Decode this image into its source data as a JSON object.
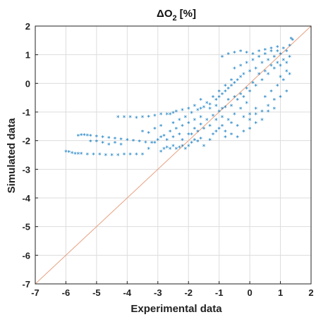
{
  "chart_data": {
    "type": "scatter",
    "title_symbol": "Δ",
    "title_main": "O",
    "title_sub": "2",
    "title_suffix": "[%]",
    "xlabel": "Experimental data",
    "ylabel": "Simulated data",
    "xlim": [
      -7,
      2
    ],
    "ylim": [
      -7,
      2
    ],
    "xticks": [
      "-7",
      "-6",
      "-5",
      "-4",
      "-3",
      "-2",
      "-1",
      "0",
      "1",
      "2"
    ],
    "yticks": [
      "2",
      "1",
      "0",
      "-1",
      "-2",
      "-3",
      "-4",
      "-5",
      "-6",
      "-7"
    ],
    "grid": true,
    "marker": "*",
    "colors": {
      "points": "#0072BD",
      "reference_line": "#E8A080",
      "grid": "#DDDDDD",
      "axes": "#222222"
    },
    "reference_line": {
      "from": [
        -7,
        -7
      ],
      "to": [
        2,
        2
      ]
    },
    "series": [
      {
        "points": [
          [
            -6.0,
            -2.4
          ],
          [
            -5.9,
            -2.42
          ],
          [
            -5.8,
            -2.45
          ],
          [
            -5.7,
            -2.47
          ],
          [
            -5.6,
            -2.48
          ],
          [
            -5.5,
            -2.48
          ],
          [
            -5.3,
            -2.5
          ],
          [
            -5.1,
            -2.5
          ],
          [
            -4.9,
            -2.5
          ],
          [
            -4.7,
            -2.52
          ],
          [
            -4.5,
            -2.52
          ],
          [
            -4.3,
            -2.52
          ],
          [
            -4.1,
            -2.5
          ],
          [
            -3.9,
            -2.5
          ],
          [
            -3.7,
            -2.5
          ],
          [
            -3.5,
            -2.5
          ],
          [
            -5.6,
            -1.85
          ],
          [
            -5.5,
            -1.82
          ],
          [
            -5.4,
            -1.82
          ],
          [
            -5.3,
            -1.83
          ],
          [
            -5.2,
            -1.85
          ],
          [
            -5.0,
            -1.87
          ],
          [
            -4.8,
            -1.9
          ],
          [
            -4.6,
            -1.92
          ],
          [
            -4.4,
            -1.95
          ],
          [
            -4.2,
            -1.97
          ],
          [
            -4.0,
            -2.0
          ],
          [
            -3.8,
            -2.02
          ],
          [
            -3.6,
            -2.05
          ],
          [
            -3.4,
            -2.08
          ],
          [
            -3.2,
            -2.1
          ],
          [
            -4.3,
            -1.2
          ],
          [
            -4.1,
            -1.2
          ],
          [
            -3.9,
            -1.2
          ],
          [
            -3.7,
            -1.22
          ],
          [
            -3.5,
            -1.2
          ],
          [
            -3.3,
            -1.18
          ],
          [
            -3.1,
            -1.15
          ],
          [
            -2.9,
            -1.1
          ],
          [
            -2.7,
            -1.1
          ],
          [
            -2.5,
            -1.05
          ],
          [
            -5.2,
            -2.05
          ],
          [
            -5.0,
            -2.05
          ],
          [
            -4.8,
            -2.1
          ],
          [
            -4.6,
            -2.15
          ],
          [
            -4.4,
            -2.1
          ],
          [
            -4.2,
            -2.15
          ],
          [
            -3.5,
            -1.7
          ],
          [
            -3.3,
            -1.75
          ],
          [
            -3.1,
            -1.6
          ],
          [
            -2.9,
            -1.5
          ],
          [
            -2.8,
            -2.3
          ],
          [
            -2.7,
            -2.25
          ],
          [
            -2.6,
            -2.3
          ],
          [
            -2.5,
            -2.2
          ],
          [
            -2.4,
            -2.3
          ],
          [
            -2.3,
            -2.25
          ],
          [
            -2.2,
            -2.2
          ],
          [
            -2.1,
            -2.3
          ],
          [
            -2.0,
            -2.2
          ],
          [
            -1.9,
            -2.1
          ],
          [
            -1.8,
            -2.0
          ],
          [
            -1.7,
            -2.05
          ],
          [
            -1.6,
            -1.95
          ],
          [
            -3.0,
            -2.0
          ],
          [
            -2.9,
            -1.9
          ],
          [
            -2.8,
            -1.85
          ],
          [
            -2.6,
            -1.7
          ],
          [
            -2.4,
            -1.6
          ],
          [
            -2.2,
            -1.5
          ],
          [
            -2.0,
            -1.4
          ],
          [
            -1.8,
            -1.3
          ],
          [
            -1.6,
            -1.2
          ],
          [
            -2.5,
            -1.4
          ],
          [
            -2.3,
            -1.3
          ],
          [
            -2.1,
            -1.2
          ],
          [
            -1.9,
            -1.05
          ],
          [
            -1.7,
            -0.95
          ],
          [
            -1.5,
            -0.85
          ],
          [
            -1.3,
            -0.75
          ],
          [
            -1.1,
            -0.6
          ],
          [
            -2.2,
            -2.0
          ],
          [
            -2.0,
            -1.8
          ],
          [
            -1.8,
            -1.6
          ],
          [
            -1.6,
            -1.45
          ],
          [
            -1.4,
            -1.3
          ],
          [
            -1.2,
            -1.15
          ],
          [
            -1.0,
            -1.0
          ],
          [
            -0.8,
            -0.85
          ],
          [
            -1.5,
            -2.2
          ],
          [
            -1.3,
            -2.0
          ],
          [
            -1.1,
            -1.7
          ],
          [
            -0.9,
            -1.5
          ],
          [
            -0.7,
            -1.3
          ],
          [
            -0.5,
            -1.1
          ],
          [
            -0.3,
            -0.9
          ],
          [
            -0.1,
            -0.7
          ],
          [
            -1.2,
            -1.8
          ],
          [
            -1.0,
            -1.6
          ],
          [
            -0.8,
            -1.7
          ],
          [
            -0.6,
            -1.4
          ],
          [
            -0.4,
            -1.5
          ],
          [
            -0.2,
            -1.2
          ],
          [
            0.0,
            -1.1
          ],
          [
            0.2,
            -0.9
          ],
          [
            -1.0,
            -0.5
          ],
          [
            -0.9,
            -0.4
          ],
          [
            -0.8,
            -0.3
          ],
          [
            -0.7,
            -0.2
          ],
          [
            -0.6,
            -0.1
          ],
          [
            -0.5,
            0.0
          ],
          [
            -0.4,
            0.1
          ],
          [
            -0.3,
            0.2
          ],
          [
            -1.3,
            -0.9
          ],
          [
            -1.1,
            -0.8
          ],
          [
            -0.9,
            -0.9
          ],
          [
            -0.7,
            -0.6
          ],
          [
            -0.5,
            -0.5
          ],
          [
            -0.3,
            -0.4
          ],
          [
            -0.1,
            -0.2
          ],
          [
            0.1,
            0.0
          ],
          [
            -0.8,
            -1.9
          ],
          [
            -0.6,
            -1.8
          ],
          [
            -0.4,
            -1.9
          ],
          [
            -0.2,
            -1.7
          ],
          [
            0.0,
            -1.6
          ],
          [
            0.2,
            -1.4
          ],
          [
            0.4,
            -1.3
          ],
          [
            -0.5,
            0.5
          ],
          [
            -0.3,
            0.6
          ],
          [
            -0.1,
            0.7
          ],
          [
            0.1,
            0.8
          ],
          [
            0.3,
            0.9
          ],
          [
            0.5,
            1.0
          ],
          [
            0.7,
            1.1
          ],
          [
            0.9,
            1.1
          ],
          [
            1.1,
            1.2
          ],
          [
            1.3,
            1.3
          ],
          [
            1.4,
            1.5
          ],
          [
            1.35,
            1.55
          ],
          [
            -0.9,
            0.9
          ],
          [
            -0.7,
            1.0
          ],
          [
            -0.5,
            1.05
          ],
          [
            -0.3,
            1.1
          ],
          [
            -0.1,
            1.05
          ],
          [
            0.1,
            1.0
          ],
          [
            0.3,
            1.1
          ],
          [
            0.5,
            1.15
          ],
          [
            0.7,
            1.2
          ],
          [
            0.9,
            1.25
          ],
          [
            -0.6,
            -0.8
          ],
          [
            -0.4,
            -0.6
          ],
          [
            -0.2,
            -0.5
          ],
          [
            0.0,
            -0.3
          ],
          [
            0.2,
            -0.1
          ],
          [
            0.4,
            0.1
          ],
          [
            0.6,
            0.3
          ],
          [
            0.8,
            0.5
          ],
          [
            1.0,
            0.6
          ],
          [
            1.2,
            0.7
          ],
          [
            0.0,
            -1.3
          ],
          [
            0.2,
            -1.1
          ],
          [
            0.4,
            -1.0
          ],
          [
            0.6,
            -0.8
          ],
          [
            0.8,
            -0.6
          ],
          [
            1.0,
            -0.5
          ],
          [
            1.2,
            -0.3
          ],
          [
            0.3,
            0.3
          ],
          [
            0.5,
            0.4
          ],
          [
            0.7,
            0.6
          ],
          [
            0.9,
            0.7
          ],
          [
            1.1,
            0.8
          ],
          [
            1.3,
            0.9
          ],
          [
            1.2,
            0.4
          ],
          [
            1.0,
            0.2
          ],
          [
            -0.2,
            0.3
          ],
          [
            0.0,
            0.4
          ],
          [
            0.2,
            0.5
          ],
          [
            0.4,
            0.7
          ],
          [
            0.6,
            0.8
          ],
          [
            0.8,
            0.9
          ],
          [
            1.0,
            1.0
          ],
          [
            1.2,
            1.1
          ],
          [
            -1.6,
            -0.9
          ],
          [
            -1.4,
            -0.7
          ],
          [
            -1.2,
            -0.5
          ],
          [
            -1.0,
            -0.3
          ],
          [
            -0.8,
            -0.1
          ],
          [
            -0.6,
            0.1
          ],
          [
            -2.0,
            -0.9
          ],
          [
            -1.8,
            -0.8
          ],
          [
            -1.6,
            -0.6
          ],
          [
            -2.6,
            -1.1
          ],
          [
            -2.4,
            -1.0
          ],
          [
            -2.2,
            -0.95
          ],
          [
            -1.9,
            -1.8
          ],
          [
            -1.7,
            -1.7
          ],
          [
            -1.5,
            -1.6
          ],
          [
            -1.3,
            -1.5
          ],
          [
            -1.1,
            -1.3
          ],
          [
            -0.9,
            -1.2
          ],
          [
            0.5,
            -0.5
          ],
          [
            0.7,
            -0.3
          ],
          [
            0.9,
            -0.1
          ],
          [
            1.1,
            0.1
          ],
          [
            1.3,
            0.3
          ],
          [
            0.6,
            -1.0
          ],
          [
            0.8,
            -0.9
          ],
          [
            -3.3,
            -2.3
          ],
          [
            -3.1,
            -2.1
          ],
          [
            -2.9,
            -2.4
          ],
          [
            -2.7,
            -2.0
          ],
          [
            -2.5,
            -1.9
          ],
          [
            -2.3,
            -1.8
          ]
        ]
      }
    ]
  }
}
